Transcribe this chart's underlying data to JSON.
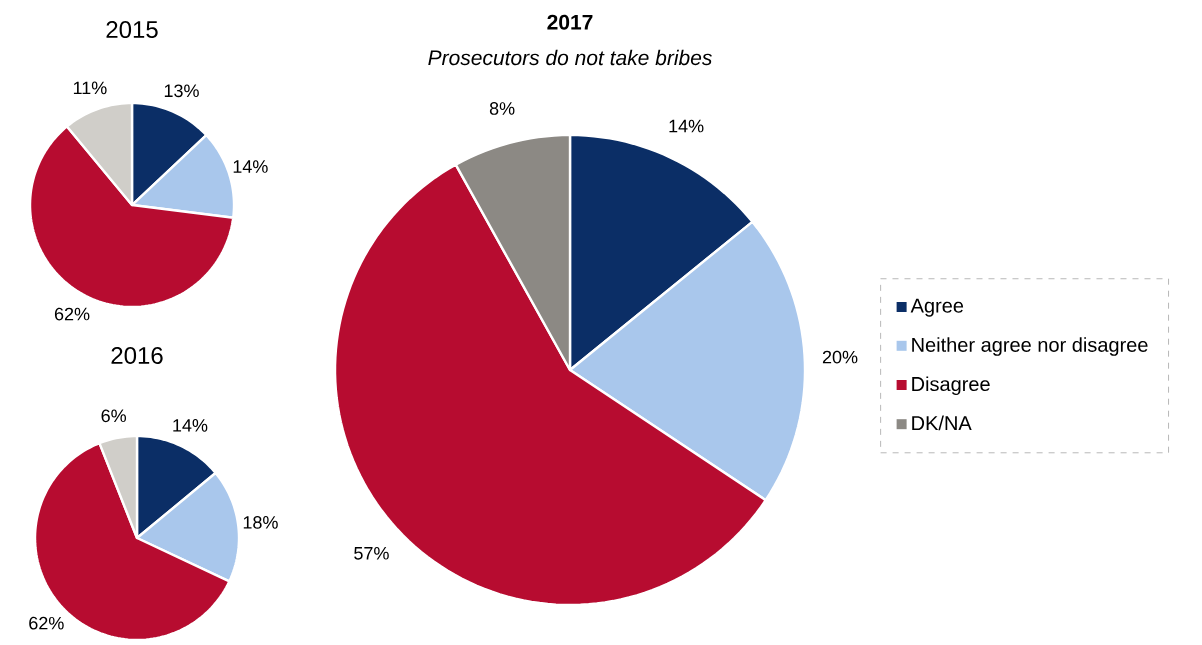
{
  "chart_data": [
    {
      "type": "pie",
      "title": "2015",
      "values": [
        13,
        14,
        62,
        11
      ],
      "colors": [
        "#0b2e66",
        "#a9c7ec",
        "#b70c30",
        "#d0cec9"
      ],
      "value_labels": [
        "13%",
        "14%",
        "62%",
        "11%"
      ]
    },
    {
      "type": "pie",
      "title": "2016",
      "values": [
        14,
        18,
        62,
        6
      ],
      "colors": [
        "#0b2e66",
        "#a9c7ec",
        "#b70c30",
        "#d0cec9"
      ],
      "value_labels": [
        "14%",
        "18%",
        "62%",
        "6%"
      ]
    },
    {
      "type": "pie",
      "title": "2017",
      "subtitle": "Prosecutors do not take bribes",
      "categories": [
        "Agree",
        "Neither agree nor disagree",
        "Disagree",
        "DK/NA"
      ],
      "values": [
        14,
        20,
        57,
        8
      ],
      "colors": [
        "#0b2e66",
        "#a9c7ec",
        "#b70c30",
        "#8c8984"
      ],
      "value_labels": [
        "14%",
        "20%",
        "57%",
        "8%"
      ],
      "legend": "right"
    }
  ]
}
